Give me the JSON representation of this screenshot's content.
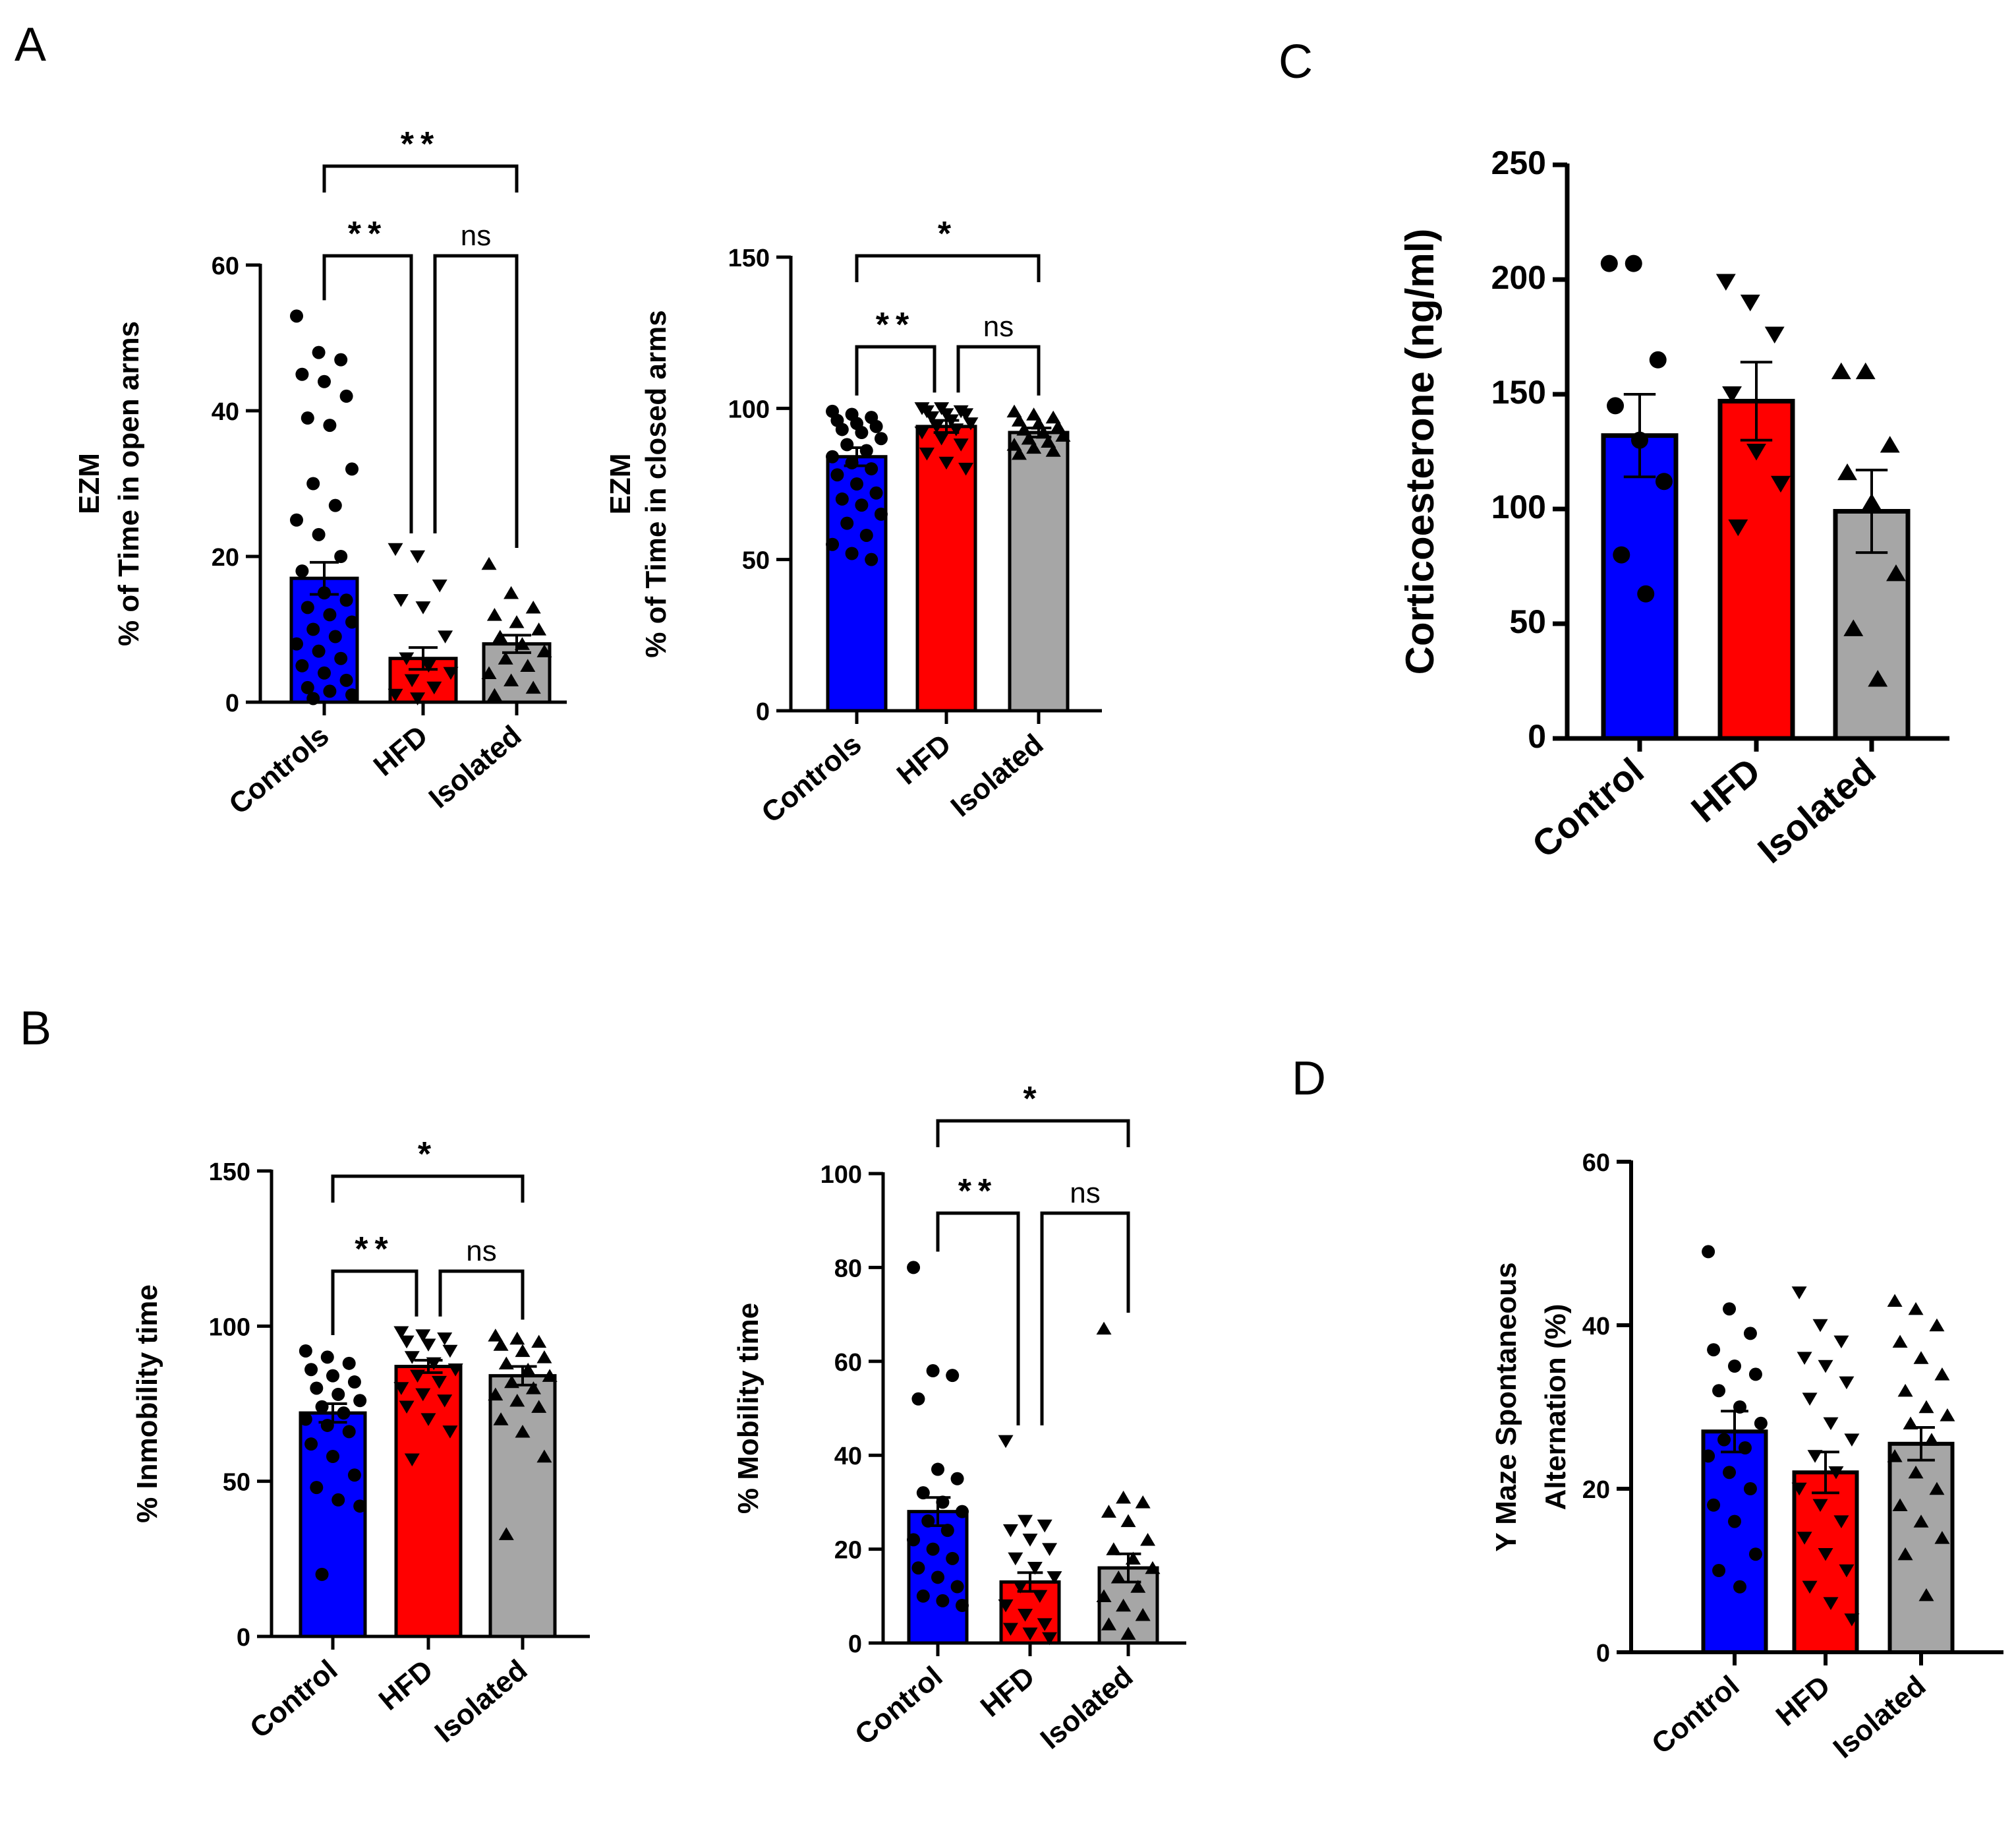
{
  "panels": {
    "A": "A",
    "B": "B",
    "C": "C",
    "D": "D"
  },
  "chart_data": [
    {
      "id": "A1",
      "type": "bar",
      "panel": "A",
      "ylabel": [
        "EZM",
        "% of Time in open arms"
      ],
      "categories": [
        "Controls",
        "HFD",
        "Isolated"
      ],
      "values": [
        17,
        6,
        8
      ],
      "errors": [
        2.2,
        1.5,
        1.2
      ],
      "colors": [
        "#0000ff",
        "#ff0000",
        "#a6a6a6"
      ],
      "markers": [
        "circle",
        "tri-down",
        "tri-up"
      ],
      "points": [
        [
          53,
          48,
          47,
          45,
          44,
          42,
          39,
          38,
          32,
          30,
          27,
          25,
          23,
          20,
          18,
          15,
          14,
          13,
          12,
          11,
          10,
          9,
          8,
          7,
          6,
          5,
          4,
          3,
          2,
          1.5,
          1,
          0.5
        ],
        [
          21,
          20,
          16,
          14,
          13,
          9,
          6,
          5,
          4,
          3,
          2,
          1,
          0.5
        ],
        [
          19,
          15,
          13,
          12,
          11,
          10,
          9,
          8,
          7,
          6,
          5,
          4,
          3,
          2,
          1
        ]
      ],
      "ylim": [
        0,
        60
      ],
      "yticks": [
        0,
        20,
        40,
        60
      ],
      "sig": [
        {
          "a": 0,
          "b": 1,
          "label": "**",
          "lvl": 0
        },
        {
          "a": 1,
          "b": 2,
          "label": "ns",
          "lvl": 0
        },
        {
          "a": 0,
          "b": 2,
          "label": "**",
          "lvl": 1
        }
      ]
    },
    {
      "id": "A2",
      "type": "bar",
      "panel": "A",
      "ylabel": [
        "EZM",
        "% of Time in closed arms"
      ],
      "categories": [
        "Controls",
        "HFD",
        "Isolated"
      ],
      "values": [
        84,
        94,
        92
      ],
      "errors": [
        3,
        2,
        1.5
      ],
      "colors": [
        "#0000ff",
        "#ff0000",
        "#a6a6a6"
      ],
      "markers": [
        "circle",
        "tri-down",
        "tri-up"
      ],
      "points": [
        [
          99,
          98,
          97,
          96,
          95,
          94,
          93,
          92,
          90,
          88,
          86,
          84,
          82,
          80,
          78,
          75,
          72,
          70,
          68,
          65,
          62,
          58,
          55,
          52,
          50
        ],
        [
          100,
          100,
          99,
          99,
          98,
          98,
          97,
          96,
          95,
          94,
          93,
          92,
          90,
          88,
          85,
          82,
          80
        ],
        [
          99,
          98,
          97,
          96,
          95,
          94,
          93,
          92,
          91,
          90,
          89,
          88,
          87,
          86,
          85
        ]
      ],
      "ylim": [
        0,
        150
      ],
      "yticks": [
        0,
        50,
        100,
        150
      ],
      "sig": [
        {
          "a": 0,
          "b": 1,
          "label": "**",
          "lvl": 0
        },
        {
          "a": 1,
          "b": 2,
          "label": "ns",
          "lvl": 0
        },
        {
          "a": 0,
          "b": 2,
          "label": "*",
          "lvl": 1
        }
      ]
    },
    {
      "id": "C",
      "type": "bar",
      "panel": "C",
      "ylabel": [
        "Corticoesterone (ng/ml)"
      ],
      "categories": [
        "Control",
        "HFD",
        "Isolated"
      ],
      "values": [
        132,
        147,
        99
      ],
      "errors": [
        18,
        17,
        18
      ],
      "colors": [
        "#0000ff",
        "#ff0000",
        "#a6a6a6"
      ],
      "markers": [
        "circle",
        "tri-down",
        "tri-up"
      ],
      "points": [
        [
          207,
          207,
          165,
          145,
          130,
          112,
          80,
          63
        ],
        [
          199,
          190,
          176,
          150,
          125,
          111,
          92
        ],
        [
          160,
          160,
          128,
          116,
          103,
          72,
          48,
          26
        ]
      ],
      "ylim": [
        0,
        250
      ],
      "yticks": [
        0,
        50,
        100,
        150,
        200,
        250
      ],
      "sig": []
    },
    {
      "id": "B1",
      "type": "bar",
      "panel": "B",
      "ylabel": [
        "% Inmobility time"
      ],
      "categories": [
        "Control",
        "HFD",
        "Isolated"
      ],
      "values": [
        72,
        87,
        84
      ],
      "errors": [
        3,
        2,
        3
      ],
      "colors": [
        "#0000ff",
        "#ff0000",
        "#a6a6a6"
      ],
      "markers": [
        "circle",
        "tri-down",
        "tri-up"
      ],
      "points": [
        [
          92,
          90,
          88,
          86,
          84,
          82,
          80,
          78,
          76,
          74,
          72,
          70,
          68,
          66,
          62,
          58,
          52,
          48,
          44,
          42,
          20
        ],
        [
          98,
          97,
          96,
          95,
          94,
          92,
          90,
          88,
          86,
          84,
          82,
          80,
          78,
          76,
          74,
          70,
          66,
          57
        ],
        [
          97,
          96,
          95,
          94,
          92,
          90,
          88,
          86,
          84,
          82,
          80,
          78,
          76,
          74,
          70,
          66,
          58,
          33
        ]
      ],
      "ylim": [
        0,
        150
      ],
      "yticks": [
        0,
        50,
        100,
        150
      ],
      "sig": [
        {
          "a": 0,
          "b": 1,
          "label": "**",
          "lvl": 0
        },
        {
          "a": 1,
          "b": 2,
          "label": "ns",
          "lvl": 0
        },
        {
          "a": 0,
          "b": 2,
          "label": "*",
          "lvl": 1
        }
      ]
    },
    {
      "id": "B2",
      "type": "bar",
      "panel": "B",
      "ylabel": [
        "% Mobility time"
      ],
      "categories": [
        "Control",
        "HFD",
        "Isolated"
      ],
      "values": [
        28,
        13,
        16
      ],
      "errors": [
        3,
        2,
        3
      ],
      "colors": [
        "#0000ff",
        "#ff0000",
        "#a6a6a6"
      ],
      "markers": [
        "circle",
        "tri-down",
        "tri-up"
      ],
      "points": [
        [
          80,
          58,
          57,
          52,
          37,
          35,
          32,
          30,
          28,
          26,
          24,
          22,
          20,
          18,
          16,
          14,
          12,
          10,
          9,
          8
        ],
        [
          43,
          26,
          25,
          24,
          22,
          20,
          18,
          16,
          14,
          12,
          10,
          8,
          6,
          4,
          3,
          2,
          1
        ],
        [
          67,
          31,
          30,
          28,
          26,
          22,
          20,
          18,
          16,
          14,
          12,
          10,
          8,
          6,
          4,
          2
        ]
      ],
      "ylim": [
        0,
        100
      ],
      "yticks": [
        0,
        20,
        40,
        60,
        80,
        100
      ],
      "sig": [
        {
          "a": 0,
          "b": 1,
          "label": "**",
          "lvl": 0
        },
        {
          "a": 1,
          "b": 2,
          "label": "ns",
          "lvl": 0
        },
        {
          "a": 0,
          "b": 2,
          "label": "*",
          "lvl": 1
        }
      ]
    },
    {
      "id": "D",
      "type": "bar",
      "panel": "D",
      "ylabel": [
        "Y Maze Spontaneous",
        "Alternation (%)"
      ],
      "categories": [
        "Control",
        "HFD",
        "Isolated"
      ],
      "values": [
        27,
        22,
        25.5
      ],
      "errors": [
        2.5,
        2.5,
        2
      ],
      "colors": [
        "#0000ff",
        "#ff0000",
        "#a6a6a6"
      ],
      "markers": [
        "circle",
        "tri-down",
        "tri-up"
      ],
      "points": [
        [
          49,
          42,
          39,
          37,
          35,
          34,
          32,
          30,
          28,
          26,
          25,
          24,
          22,
          20,
          18,
          16,
          12,
          10,
          8
        ],
        [
          44,
          40,
          38,
          36,
          35,
          33,
          31,
          28,
          26,
          24,
          22,
          20,
          18,
          16,
          14,
          12,
          10,
          8,
          6,
          4
        ],
        [
          43,
          42,
          40,
          38,
          36,
          34,
          32,
          30,
          29,
          28,
          26,
          24,
          22,
          20,
          18,
          16,
          14,
          12,
          7
        ]
      ],
      "ylim": [
        0,
        60
      ],
      "yticks": [
        0,
        20,
        40,
        60
      ],
      "sig": []
    }
  ]
}
